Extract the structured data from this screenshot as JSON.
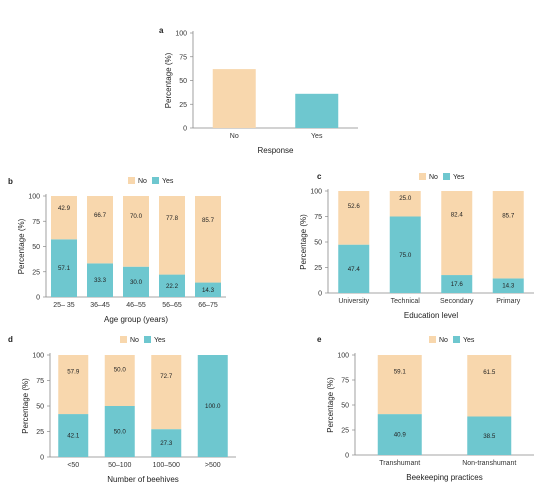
{
  "colors": {
    "no": "#F8D7AD",
    "yes": "#6EC7CF",
    "axis": "#888888"
  },
  "legend": {
    "no_label": "No",
    "yes_label": "Yes"
  },
  "chart_data": [
    {
      "panel": "a",
      "type": "bar",
      "categories": [
        "No",
        "Yes"
      ],
      "values": [
        62,
        36
      ],
      "xlabel": "Response",
      "ylabel": "Percentage (%)",
      "ylim": [
        0,
        100
      ],
      "yticks": [
        "0",
        "25",
        "50",
        "75",
        "100"
      ],
      "legend": "none"
    },
    {
      "panel": "b",
      "type": "bar",
      "stacked": true,
      "categories": [
        "25– 35",
        "36–45",
        "46–55",
        "56–65",
        "66–75"
      ],
      "series": [
        {
          "name": "No",
          "values": [
            "42.9",
            "66.7",
            "70.0",
            "77.8",
            "85.7"
          ]
        },
        {
          "name": "Yes",
          "values": [
            "57.1",
            "33.3",
            "30.0",
            "22.2",
            "14.3"
          ]
        }
      ],
      "xlabel": "Age group (years)",
      "ylabel": "Percentage (%)",
      "ylim": [
        0,
        100
      ],
      "yticks": [
        "0",
        "25",
        "50",
        "75",
        "100"
      ],
      "legend": "top"
    },
    {
      "panel": "c",
      "type": "bar",
      "stacked": true,
      "categories": [
        "University",
        "Technical",
        "Secondary",
        "Primary"
      ],
      "series": [
        {
          "name": "No",
          "values": [
            "52.6",
            "25.0",
            "82.4",
            "85.7"
          ]
        },
        {
          "name": "Yes",
          "values": [
            "47.4",
            "75.0",
            "17.6",
            "14.3"
          ]
        }
      ],
      "xlabel": "Education level",
      "ylabel": "Percentage (%)",
      "ylim": [
        0,
        100
      ],
      "yticks": [
        "0",
        "25",
        "50",
        "75",
        "100"
      ],
      "legend": "top"
    },
    {
      "panel": "d",
      "type": "bar",
      "stacked": true,
      "categories": [
        "<50",
        "50–100",
        "100–500",
        ">500"
      ],
      "series": [
        {
          "name": "No",
          "values": [
            "57.9",
            "50.0",
            "72.7",
            ""
          ]
        },
        {
          "name": "Yes",
          "values": [
            "42.1",
            "50.0",
            "27.3",
            "100.0"
          ]
        }
      ],
      "xlabel": "Number of beehives",
      "ylabel": "Percentage (%)",
      "ylim": [
        0,
        100
      ],
      "yticks": [
        "0",
        "25",
        "50",
        "75",
        "100"
      ],
      "legend": "top"
    },
    {
      "panel": "e",
      "type": "bar",
      "stacked": true,
      "categories": [
        "Transhumant",
        "Non-transhumant"
      ],
      "series": [
        {
          "name": "No",
          "values": [
            "59.1",
            "61.5"
          ]
        },
        {
          "name": "Yes",
          "values": [
            "40.9",
            "38.5"
          ]
        }
      ],
      "xlabel": "Beekeeping practices",
      "ylabel": "Percentage (%)",
      "ylim": [
        0,
        100
      ],
      "yticks": [
        "0",
        "25",
        "50",
        "75",
        "100"
      ],
      "legend": "top"
    }
  ]
}
